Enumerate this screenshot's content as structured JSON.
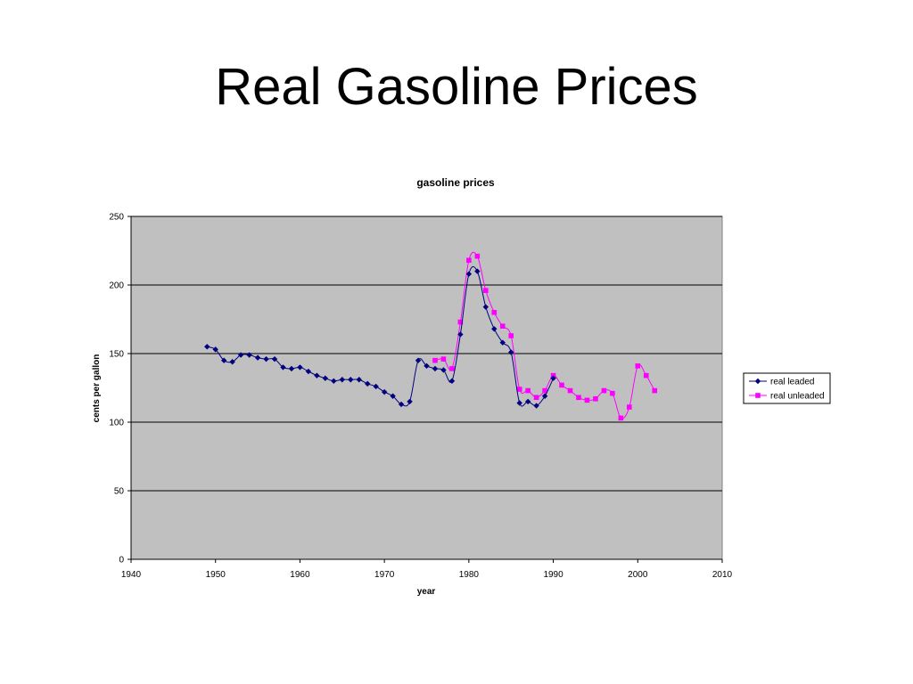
{
  "slide": {
    "title": "Real Gasoline Prices"
  },
  "colors": {
    "plot_background": "#c0c0c0",
    "grid_line": "#000000",
    "real_leaded": "#000080",
    "real_unleaded": "#ff00ff"
  },
  "chart_data": {
    "type": "line",
    "title": "gasoline prices",
    "xlabel": "year",
    "ylabel": "cents per gallon",
    "xlim": [
      1940,
      2010
    ],
    "ylim": [
      0,
      250
    ],
    "x_ticks": [
      1940,
      1950,
      1960,
      1970,
      1980,
      1990,
      2000,
      2010
    ],
    "y_ticks": [
      0,
      50,
      100,
      150,
      200,
      250
    ],
    "grid": "horizontal major gridlines",
    "legend_position": "right",
    "series": [
      {
        "name": "real leaded",
        "marker": "diamond",
        "color": "#000080",
        "points": [
          [
            1949,
            155
          ],
          [
            1950,
            153
          ],
          [
            1951,
            145
          ],
          [
            1952,
            144
          ],
          [
            1953,
            149
          ],
          [
            1954,
            149
          ],
          [
            1955,
            147
          ],
          [
            1956,
            146
          ],
          [
            1957,
            146
          ],
          [
            1958,
            140
          ],
          [
            1959,
            139
          ],
          [
            1960,
            140
          ],
          [
            1961,
            137
          ],
          [
            1962,
            134
          ],
          [
            1963,
            132
          ],
          [
            1964,
            130
          ],
          [
            1965,
            131
          ],
          [
            1966,
            131
          ],
          [
            1967,
            131
          ],
          [
            1968,
            128
          ],
          [
            1969,
            126
          ],
          [
            1970,
            122
          ],
          [
            1971,
            119
          ],
          [
            1972,
            113
          ],
          [
            1973,
            115
          ],
          [
            1974,
            145
          ],
          [
            1975,
            141
          ],
          [
            1976,
            139
          ],
          [
            1977,
            138
          ],
          [
            1978,
            130
          ],
          [
            1979,
            164
          ],
          [
            1980,
            208
          ],
          [
            1981,
            210
          ],
          [
            1982,
            184
          ],
          [
            1983,
            168
          ],
          [
            1984,
            158
          ],
          [
            1985,
            151
          ],
          [
            1986,
            114
          ],
          [
            1987,
            115
          ],
          [
            1988,
            112
          ],
          [
            1989,
            119
          ],
          [
            1990,
            132
          ]
        ]
      },
      {
        "name": "real unleaded",
        "marker": "square",
        "color": "#ff00ff",
        "points": [
          [
            1976,
            145
          ],
          [
            1977,
            146
          ],
          [
            1978,
            139
          ],
          [
            1979,
            173
          ],
          [
            1980,
            218
          ],
          [
            1981,
            221
          ],
          [
            1982,
            196
          ],
          [
            1983,
            180
          ],
          [
            1984,
            170
          ],
          [
            1985,
            163
          ],
          [
            1986,
            124
          ],
          [
            1987,
            123
          ],
          [
            1988,
            118
          ],
          [
            1989,
            123
          ],
          [
            1990,
            134
          ],
          [
            1991,
            127
          ],
          [
            1992,
            123
          ],
          [
            1993,
            118
          ],
          [
            1994,
            116
          ],
          [
            1995,
            117
          ],
          [
            1996,
            123
          ],
          [
            1997,
            121
          ],
          [
            1998,
            103
          ],
          [
            1999,
            111
          ],
          [
            2000,
            141
          ],
          [
            2001,
            134
          ],
          [
            2002,
            123
          ]
        ]
      }
    ]
  }
}
